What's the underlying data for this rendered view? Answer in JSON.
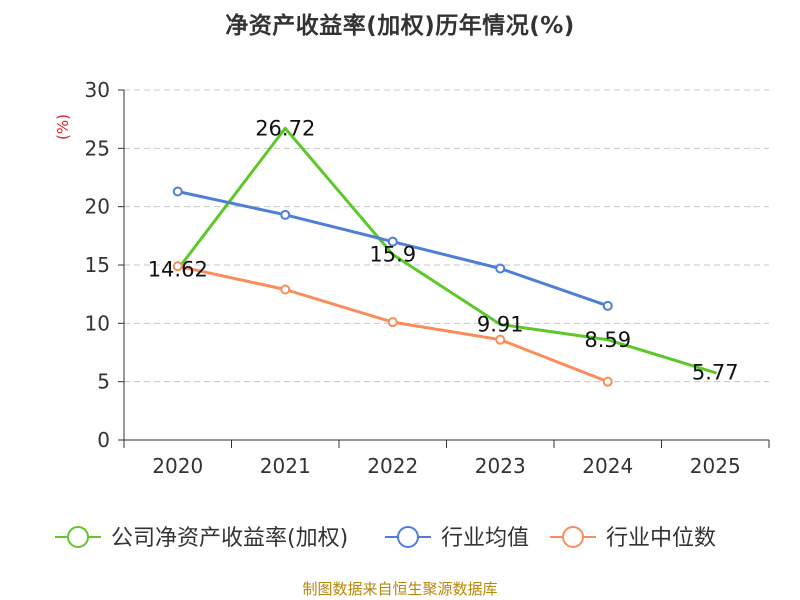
{
  "chart_data": {
    "type": "line",
    "title": "净资产收益率(加权)历年情况(%)",
    "ylabel": "(%)",
    "xlabel": "",
    "ylim": [
      0,
      30
    ],
    "yticks": [
      0,
      5,
      10,
      15,
      20,
      25,
      30
    ],
    "categories": [
      "2020",
      "2021",
      "2022",
      "2023",
      "2024",
      "2025"
    ],
    "grid": true,
    "legend_position": "bottom",
    "series": [
      {
        "name": "公司净资产收益率(加权)",
        "color": "#5ec729",
        "values": [
          14.62,
          26.72,
          15.9,
          9.91,
          8.59,
          5.77
        ],
        "labels": [
          "14.62",
          "26.72",
          "15.9",
          "9.91",
          "8.59",
          "5.77"
        ],
        "show_labels": true,
        "show_markers": false
      },
      {
        "name": "行业均值",
        "color": "#4d7fd6",
        "values": [
          21.3,
          19.3,
          17.0,
          14.7,
          11.5,
          null
        ],
        "show_labels": false,
        "show_markers": true
      },
      {
        "name": "行业中位数",
        "color": "#f98d5b",
        "values": [
          14.9,
          12.9,
          10.1,
          8.6,
          5.0,
          null
        ],
        "show_labels": false,
        "show_markers": true
      }
    ]
  },
  "footer": {
    "source": "制图数据来自恒生聚源数据库"
  }
}
